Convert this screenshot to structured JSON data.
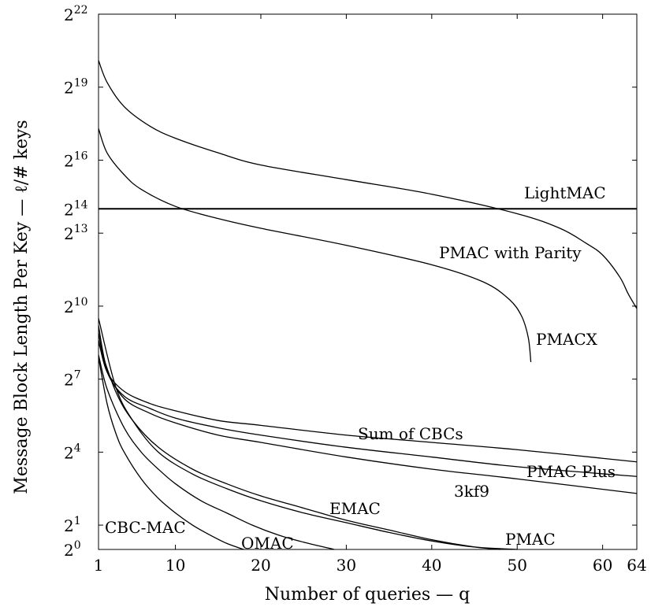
{
  "chart_data": {
    "type": "line",
    "title": "",
    "xlabel": "Number of queries — q",
    "ylabel": "Message Block Length Per Key — ℓ/# keys",
    "xlim": [
      1,
      64
    ],
    "ylim_log2": [
      0,
      22
    ],
    "y_scale": "log2",
    "grid": false,
    "x_ticks": [
      1,
      10,
      20,
      30,
      40,
      50,
      60,
      64
    ],
    "y_ticks_exponents": [
      0,
      1,
      4,
      7,
      10,
      13,
      14,
      16,
      19,
      22
    ],
    "y_tick_base": "2",
    "series": [
      {
        "name": "LightMAC",
        "x": [
          1,
          10,
          20,
          30,
          40,
          50,
          60,
          64
        ],
        "log2_y": [
          14,
          14,
          14,
          14,
          14,
          14,
          14,
          14
        ]
      },
      {
        "name": "PMAC with Parity",
        "x": [
          1,
          2,
          4,
          7,
          10,
          15,
          20,
          30,
          40,
          50,
          55,
          58,
          60,
          62,
          63,
          64
        ],
        "log2_y": [
          20.1,
          19.2,
          18.2,
          17.4,
          16.9,
          16.3,
          15.8,
          15.2,
          14.6,
          13.8,
          13.2,
          12.6,
          12.1,
          11.2,
          10.5,
          9.9
        ]
      },
      {
        "name": "PMACX",
        "x": [
          1,
          2,
          4,
          6,
          10,
          15,
          20,
          30,
          40,
          46,
          49,
          50.5,
          51.3,
          51.6
        ],
        "log2_y": [
          17.3,
          16.3,
          15.4,
          14.8,
          14.1,
          13.6,
          13.2,
          12.5,
          11.7,
          11.0,
          10.3,
          9.6,
          8.7,
          7.7
        ]
      },
      {
        "name": "Sum of CBCs",
        "x": [
          1,
          2,
          4,
          7,
          10,
          15,
          20,
          30,
          40,
          50,
          64
        ],
        "log2_y": [
          8.6,
          7.3,
          6.5,
          6.0,
          5.7,
          5.3,
          5.1,
          4.7,
          4.4,
          4.1,
          3.6
        ]
      },
      {
        "name": "PMAC Plus",
        "x": [
          1,
          2,
          4,
          7,
          10,
          15,
          20,
          30,
          40,
          50,
          64
        ],
        "log2_y": [
          8.9,
          7.3,
          6.3,
          5.8,
          5.4,
          5.0,
          4.7,
          4.2,
          3.8,
          3.4,
          3.0
        ]
      },
      {
        "name": "3kf9",
        "x": [
          1,
          2,
          4,
          7,
          10,
          15,
          20,
          30,
          40,
          50,
          64
        ],
        "log2_y": [
          9.2,
          7.4,
          6.2,
          5.6,
          5.2,
          4.7,
          4.4,
          3.8,
          3.3,
          2.9,
          2.3
        ]
      },
      {
        "name": "EMAC",
        "x": [
          1,
          3,
          5,
          8,
          12,
          16,
          20,
          25,
          30,
          35,
          40,
          45,
          48
        ],
        "log2_y": [
          8.5,
          6.5,
          5.3,
          4.2,
          3.3,
          2.7,
          2.2,
          1.7,
          1.2,
          0.8,
          0.4,
          0.1,
          0
        ]
      },
      {
        "name": "PMAC",
        "x": [
          1,
          3,
          5,
          8,
          12,
          16,
          20,
          25,
          30,
          35,
          40,
          45,
          50
        ],
        "log2_y": [
          9.5,
          6.7,
          5.3,
          4.0,
          3.1,
          2.5,
          2.0,
          1.5,
          1.1,
          0.7,
          0.35,
          0.1,
          0
        ]
      },
      {
        "name": "OMAC",
        "x": [
          1,
          2,
          4,
          6,
          8,
          10,
          13,
          16,
          19,
          22,
          25,
          28.6
        ],
        "log2_y": [
          8.0,
          6.6,
          5.0,
          4.0,
          3.3,
          2.7,
          2.0,
          1.5,
          1.0,
          0.6,
          0.3,
          0
        ]
      },
      {
        "name": "CBC-MAC",
        "x": [
          1,
          2,
          3,
          4,
          6,
          8,
          10,
          12,
          14,
          16,
          18
        ],
        "log2_y": [
          7.9,
          6.0,
          4.8,
          4.0,
          2.9,
          2.1,
          1.5,
          1.0,
          0.6,
          0.25,
          0
        ]
      }
    ],
    "annotations": [
      {
        "text": "LightMAC",
        "series": "LightMAC"
      },
      {
        "text": "PMAC with Parity",
        "series": "PMAC with Parity"
      },
      {
        "text": "PMACX",
        "series": "PMACX"
      },
      {
        "text": "Sum of CBCs",
        "series": "Sum of CBCs"
      },
      {
        "text": "PMAC Plus",
        "series": "PMAC Plus"
      },
      {
        "text": "3kf9",
        "series": "3kf9"
      },
      {
        "text": "EMAC",
        "series": "EMAC"
      },
      {
        "text": "PMAC",
        "series": "PMAC"
      },
      {
        "text": "OMAC",
        "series": "OMAC"
      },
      {
        "text": "CBC-MAC",
        "series": "CBC-MAC"
      }
    ]
  }
}
